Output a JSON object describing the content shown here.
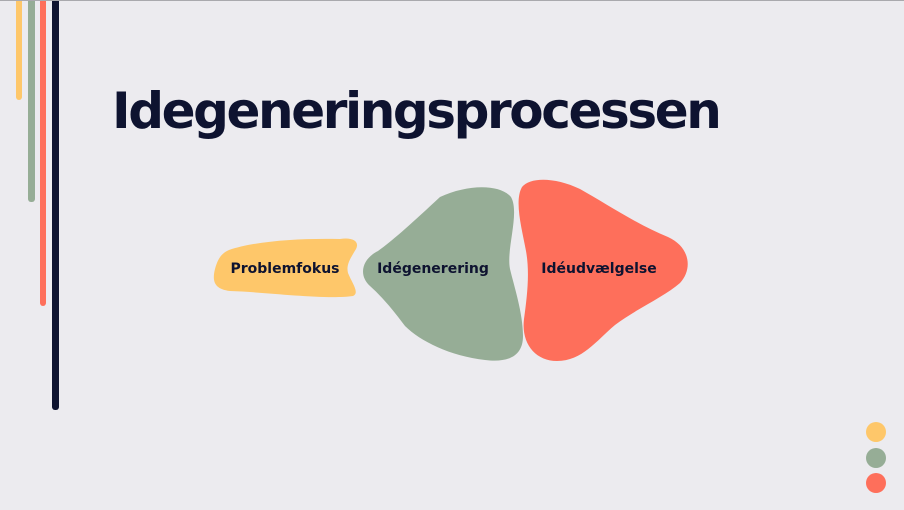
{
  "slide": {
    "title": "Idegeneringsprocessen",
    "stages": [
      {
        "label": "Problemfokus",
        "color": "#fec76a"
      },
      {
        "label": "Idégenerering",
        "color": "#96ad96"
      },
      {
        "label": "Idéudvælgelse",
        "color": "#fe6f5b"
      }
    ]
  },
  "colors": {
    "background": "#ecebef",
    "navy": "#0e1330",
    "yellow": "#fec76a",
    "green": "#96ad96",
    "red": "#fe6f5b"
  }
}
